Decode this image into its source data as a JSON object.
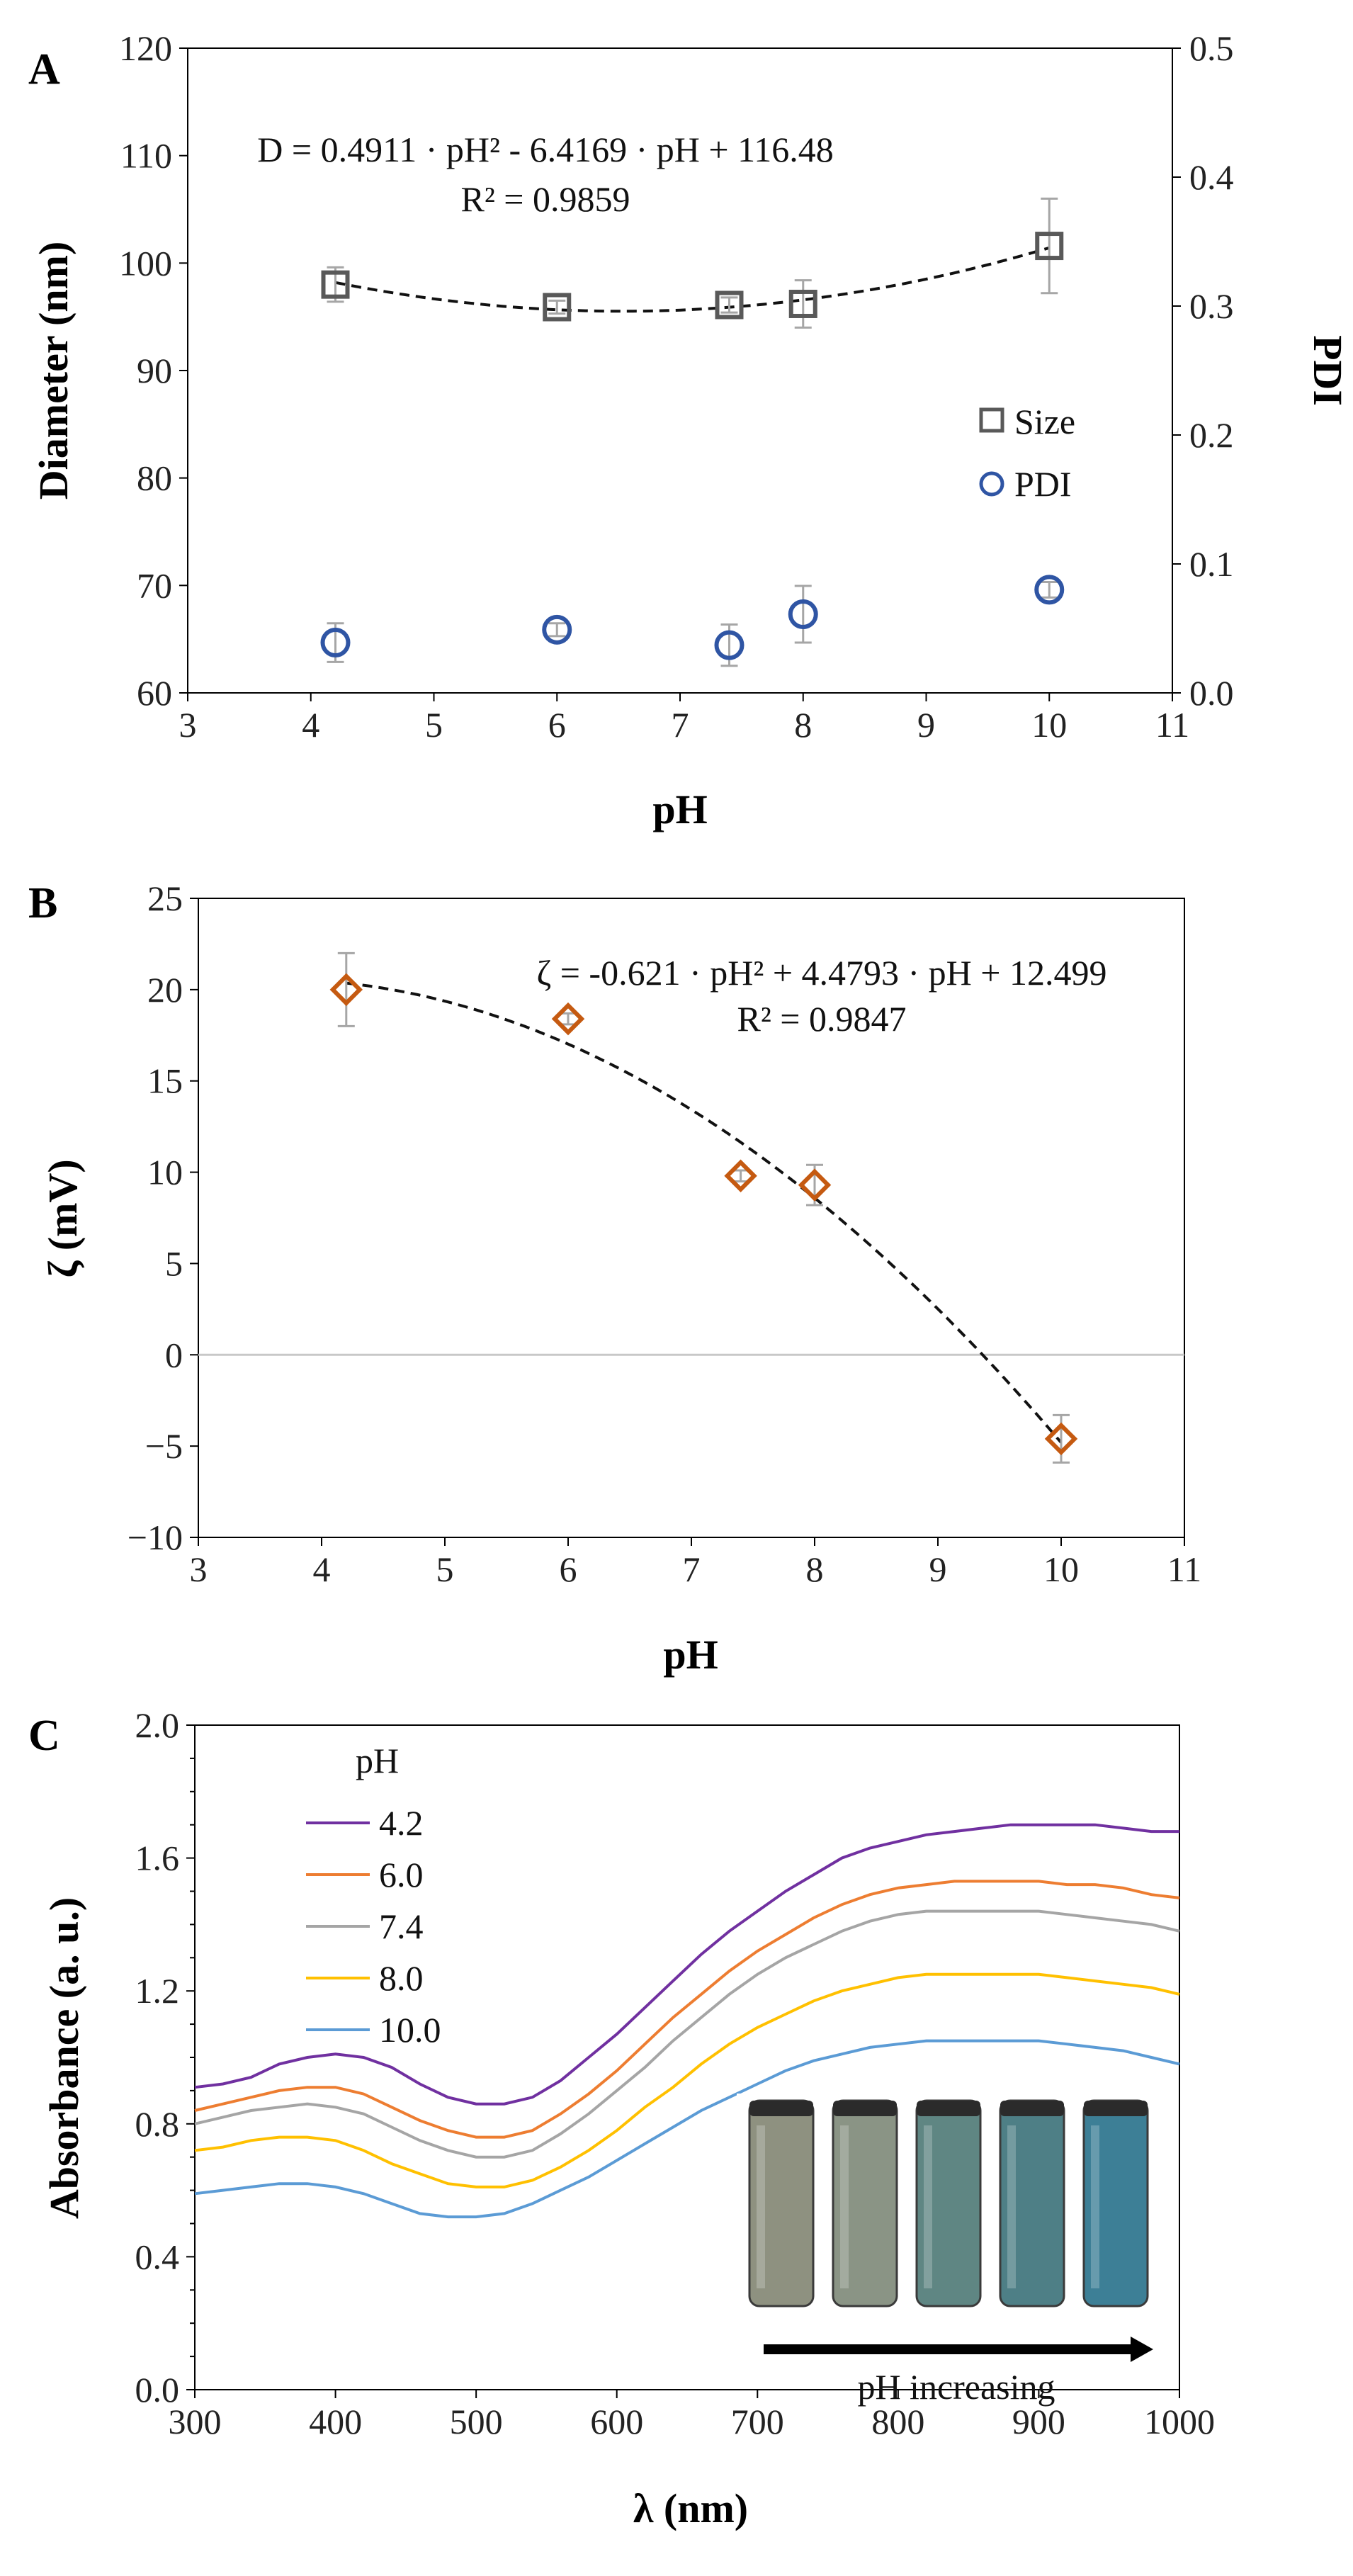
{
  "chart_data": [
    {
      "panel": "A",
      "type": "scatter",
      "xlabel": "pH",
      "ylabel": "Diameter (nm)",
      "y2label": "PDI",
      "xlim": [
        3,
        11
      ],
      "ylim": [
        60,
        120
      ],
      "y2lim": [
        0.0,
        0.5
      ],
      "xticks": [
        "3",
        "4",
        "5",
        "6",
        "7",
        "8",
        "9",
        "10",
        "11"
      ],
      "yticks": [
        "60",
        "70",
        "80",
        "90",
        "100",
        "110",
        "120"
      ],
      "y2ticks": [
        "0.0",
        "0.1",
        "0.2",
        "0.3",
        "0.4",
        "0.5"
      ],
      "equation": "D = 0.4911 · pH² - 6.4169 · pH + 116.48",
      "r2": "R² = 0.9859",
      "fit": {
        "a": 0.4911,
        "b": -6.4169,
        "c": 116.48,
        "x_range": [
          4.2,
          10
        ]
      },
      "series": [
        {
          "name": "Size",
          "axis": "left",
          "color": "#595959",
          "x": [
            4.2,
            6.0,
            7.4,
            8.0,
            10.0
          ],
          "y": [
            98.0,
            95.9,
            96.1,
            96.2,
            101.6
          ],
          "err": [
            1.6,
            0.6,
            0.7,
            2.2,
            4.4
          ]
        },
        {
          "name": "PDI",
          "axis": "right",
          "color": "#2F55A4",
          "x": [
            4.2,
            6.0,
            7.4,
            8.0,
            10.0
          ],
          "y": [
            0.039,
            0.049,
            0.037,
            0.061,
            0.08
          ],
          "err": [
            0.015,
            0.005,
            0.016,
            0.022,
            0.006
          ]
        }
      ]
    },
    {
      "panel": "B",
      "type": "scatter",
      "xlabel": "pH",
      "ylabel": "ζ (mV)",
      "xlim": [
        3,
        11
      ],
      "ylim": [
        -10,
        25
      ],
      "xticks": [
        "3",
        "4",
        "5",
        "6",
        "7",
        "8",
        "9",
        "10",
        "11"
      ],
      "yticks": [
        "−10",
        "−5",
        "0",
        "5",
        "10",
        "15",
        "20",
        "25"
      ],
      "equation": "ζ = -0.621 · pH² + 4.4793 · pH + 12.499",
      "r2": "R² = 0.9847",
      "fit": {
        "a": -0.621,
        "b": 4.4793,
        "c": 12.499,
        "x_range": [
          4.2,
          10
        ]
      },
      "series": [
        {
          "name": "ζ",
          "color": "#C55A11",
          "x": [
            4.2,
            6.0,
            7.4,
            8.0,
            10.0
          ],
          "y": [
            20.0,
            18.4,
            9.8,
            9.3,
            -4.6
          ],
          "err": [
            2.0,
            0.3,
            0.3,
            1.1,
            1.3
          ]
        }
      ]
    },
    {
      "panel": "C",
      "type": "line",
      "xlabel": "λ (nm)",
      "ylabel": "Absorbance (a. u.)",
      "xlim": [
        300,
        1000
      ],
      "ylim": [
        0.0,
        2.0
      ],
      "xticks": [
        "300",
        "400",
        "500",
        "600",
        "700",
        "800",
        "900",
        "1000"
      ],
      "yticks": [
        "0.0",
        "0.4",
        "0.8",
        "1.2",
        "1.6",
        "2.0"
      ],
      "legend_title": "pH",
      "inset_caption": "pH increasing",
      "x": [
        300,
        320,
        340,
        360,
        380,
        400,
        420,
        440,
        460,
        480,
        500,
        520,
        540,
        560,
        580,
        600,
        620,
        640,
        660,
        680,
        700,
        720,
        740,
        760,
        780,
        800,
        820,
        840,
        860,
        880,
        900,
        920,
        940,
        960,
        980,
        1000
      ],
      "series": [
        {
          "name": "4.2",
          "color": "#7030A0",
          "values": [
            0.91,
            0.92,
            0.94,
            0.98,
            1.0,
            1.01,
            1.0,
            0.97,
            0.92,
            0.88,
            0.86,
            0.86,
            0.88,
            0.93,
            1.0,
            1.07,
            1.15,
            1.23,
            1.31,
            1.38,
            1.44,
            1.5,
            1.55,
            1.6,
            1.63,
            1.65,
            1.67,
            1.68,
            1.69,
            1.7,
            1.7,
            1.7,
            1.7,
            1.69,
            1.68,
            1.68
          ]
        },
        {
          "name": "6.0",
          "color": "#ED7D31",
          "values": [
            0.84,
            0.86,
            0.88,
            0.9,
            0.91,
            0.91,
            0.89,
            0.85,
            0.81,
            0.78,
            0.76,
            0.76,
            0.78,
            0.83,
            0.89,
            0.96,
            1.04,
            1.12,
            1.19,
            1.26,
            1.32,
            1.37,
            1.42,
            1.46,
            1.49,
            1.51,
            1.52,
            1.53,
            1.53,
            1.53,
            1.53,
            1.52,
            1.52,
            1.51,
            1.49,
            1.48
          ]
        },
        {
          "name": "7.4",
          "color": "#A5A5A5",
          "values": [
            0.8,
            0.82,
            0.84,
            0.85,
            0.86,
            0.85,
            0.83,
            0.79,
            0.75,
            0.72,
            0.7,
            0.7,
            0.72,
            0.77,
            0.83,
            0.9,
            0.97,
            1.05,
            1.12,
            1.19,
            1.25,
            1.3,
            1.34,
            1.38,
            1.41,
            1.43,
            1.44,
            1.44,
            1.44,
            1.44,
            1.44,
            1.43,
            1.42,
            1.41,
            1.4,
            1.38
          ]
        },
        {
          "name": "8.0",
          "color": "#FFC000",
          "values": [
            0.72,
            0.73,
            0.75,
            0.76,
            0.76,
            0.75,
            0.72,
            0.68,
            0.65,
            0.62,
            0.61,
            0.61,
            0.63,
            0.67,
            0.72,
            0.78,
            0.85,
            0.91,
            0.98,
            1.04,
            1.09,
            1.13,
            1.17,
            1.2,
            1.22,
            1.24,
            1.25,
            1.25,
            1.25,
            1.25,
            1.25,
            1.24,
            1.23,
            1.22,
            1.21,
            1.19
          ]
        },
        {
          "name": "10.0",
          "color": "#5B9BD5",
          "values": [
            0.59,
            0.6,
            0.61,
            0.62,
            0.62,
            0.61,
            0.59,
            0.56,
            0.53,
            0.52,
            0.52,
            0.53,
            0.56,
            0.6,
            0.64,
            0.69,
            0.74,
            0.79,
            0.84,
            0.88,
            0.92,
            0.96,
            0.99,
            1.01,
            1.03,
            1.04,
            1.05,
            1.05,
            1.05,
            1.05,
            1.05,
            1.04,
            1.03,
            1.02,
            1.0,
            0.98
          ]
        }
      ],
      "vial_colors": [
        "#8E9180",
        "#8A9485",
        "#5F8683",
        "#4E7F86",
        "#3D7F96"
      ]
    }
  ]
}
